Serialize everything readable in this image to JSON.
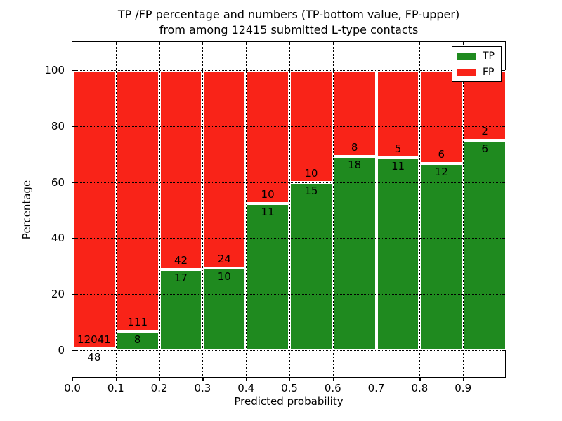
{
  "chart_data": {
    "type": "bar",
    "stacked": true,
    "title": "TP /FP percentage and numbers (TP-bottom value, FP-upper)\nfrom among 12415 submitted L-type contacts",
    "title_lines": [
      "TP /FP percentage and numbers (TP-bottom value, FP-upper)",
      "from among 12415 submitted L-type contacts"
    ],
    "xlabel": "Predicted probability",
    "ylabel": "Percentage",
    "xlim": [
      0.0,
      1.0
    ],
    "ylim": [
      -10.3,
      110.2
    ],
    "x_tick_labels": [
      "0.0",
      "0.1",
      "0.2",
      "0.3",
      "0.4",
      "0.5",
      "0.6",
      "0.7",
      "0.8",
      "0.9"
    ],
    "y_tick_values": [
      0,
      20,
      40,
      60,
      80,
      100
    ],
    "grid": {
      "visible": true,
      "linestyle": "dotted",
      "color": "#000000"
    },
    "bin_edges": [
      0.0,
      0.1,
      0.2,
      0.3,
      0.4,
      0.5,
      0.6,
      0.7,
      0.8,
      0.9,
      1.0
    ],
    "series": [
      {
        "name": "TP",
        "color": "#1f8a1f",
        "counts": [
          48,
          8,
          17,
          10,
          11,
          15,
          18,
          11,
          12,
          6
        ]
      },
      {
        "name": "FP",
        "color": "#f92318",
        "counts": [
          12041,
          111,
          42,
          24,
          10,
          10,
          8,
          5,
          6,
          2
        ]
      }
    ],
    "bar_edge_color": "#ffffff",
    "legend": {
      "position": "upper right",
      "entries": [
        {
          "label": "TP",
          "color": "#1f8a1f"
        },
        {
          "label": "FP",
          "color": "#f92318"
        }
      ]
    }
  }
}
